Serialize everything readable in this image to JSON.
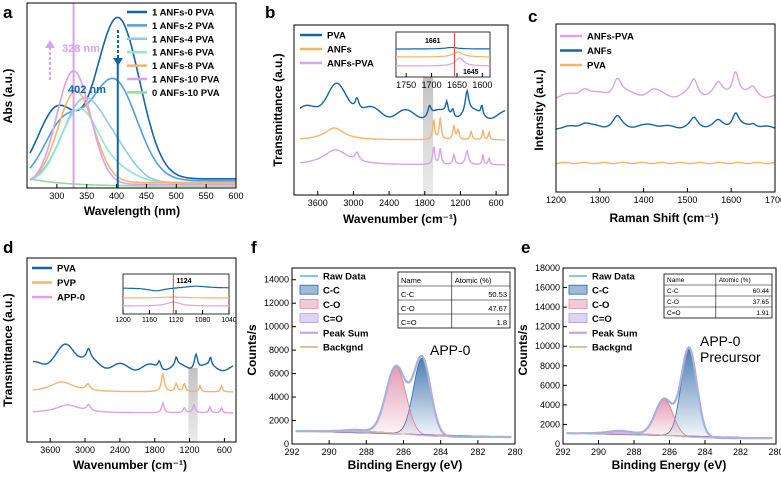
{
  "chart_data": [
    {
      "panel": "a",
      "type": "line",
      "xlabel": "Wavelength (nm)",
      "ylabel": "Abs (a.u.)",
      "xlim": [
        250,
        600
      ],
      "xticks": [
        "300",
        "350",
        "400",
        "450",
        "500",
        "550",
        "600"
      ],
      "annotations": [
        "328 nm",
        "402 nm"
      ],
      "series": [
        {
          "name": "1 ANFs-0 PVA",
          "color": "#1565a6",
          "peak_nm": 402,
          "peak_abs": 0.88
        },
        {
          "name": "1 ANFs-2 PVA",
          "color": "#4f9fe0",
          "peak_nm": 395,
          "peak_abs": 0.55
        },
        {
          "name": "1 ANFs-4 PVA",
          "color": "#8ec8ef",
          "peak_nm": 345,
          "peak_abs": 0.45
        },
        {
          "name": "1 ANFs-6 PVA",
          "color": "#8fe6d2",
          "peak_nm": 338,
          "peak_abs": 0.4
        },
        {
          "name": "1 ANFs-8 PVA",
          "color": "#f6b36c",
          "peak_nm": 332,
          "peak_abs": 0.5
        },
        {
          "name": "1 ANFs-10 PVA",
          "color": "#d9a2ee",
          "peak_nm": 328,
          "peak_abs": 0.62
        },
        {
          "name": "0 ANFs-10 PVA",
          "color": "#9ad89a",
          "peak_nm": 250,
          "peak_abs": 0.04
        }
      ]
    },
    {
      "panel": "b",
      "type": "line",
      "xlabel": "Wavenumber (cm⁻¹)",
      "ylabel": "Transmittance (a.u.)",
      "xlim": [
        4000,
        400
      ],
      "xticks": [
        "3600",
        "3000",
        "2400",
        "1800",
        "1200",
        "600"
      ],
      "series": [
        {
          "name": "PVA",
          "color": "#1565a6"
        },
        {
          "name": "ANFs",
          "color": "#f6b36c"
        },
        {
          "name": "ANFs-PVA",
          "color": "#d9a2ee"
        }
      ],
      "inset": {
        "xticks": [
          "1750",
          "1700",
          "1650",
          "1600"
        ],
        "annotations": [
          "1661",
          "1645"
        ]
      }
    },
    {
      "panel": "c",
      "type": "line",
      "xlabel": "Raman Shift (cm⁻¹)",
      "ylabel": "Intensity (a.u.)",
      "xlim": [
        1200,
        1700
      ],
      "xticks": [
        "1200",
        "1300",
        "1400",
        "1500",
        "1600",
        "1700"
      ],
      "series": [
        {
          "name": "ANFs-PVA",
          "color": "#d9a2ee"
        },
        {
          "name": "ANFs",
          "color": "#1565a6"
        },
        {
          "name": "PVA",
          "color": "#f6b36c"
        }
      ]
    },
    {
      "panel": "d",
      "type": "line",
      "xlabel": "Wavenumber (cm⁻¹)",
      "ylabel": "Transmittance (a.u.)",
      "xlim": [
        4000,
        400
      ],
      "xticks": [
        "3600",
        "3000",
        "2400",
        "1800",
        "1200",
        "600"
      ],
      "series": [
        {
          "name": "PVA",
          "color": "#1565a6"
        },
        {
          "name": "PVP",
          "color": "#f6b36c"
        },
        {
          "name": "APP-0",
          "color": "#d9a2ee"
        }
      ],
      "inset": {
        "xticks": [
          "1200",
          "1160",
          "1120",
          "1080",
          "1040"
        ],
        "annotations": [
          "1124"
        ]
      }
    },
    {
      "panel": "f",
      "type": "line",
      "xlabel": "Binding Energy (eV)",
      "ylabel": "Counts/s",
      "xlim": [
        292,
        280
      ],
      "ylim": [
        0,
        15000
      ],
      "xticks": [
        "292",
        "290",
        "288",
        "286",
        "284",
        "282",
        "280"
      ],
      "yticks": [
        "0",
        "2000",
        "4000",
        "6000",
        "8000",
        "10000",
        "12000",
        "14000"
      ],
      "legend": [
        "Raw Data",
        "C-C",
        "C-O",
        "C=O",
        "Peak Sum",
        "Backgnd"
      ],
      "sample": "APP-0",
      "table": {
        "headers": [
          "Name",
          "Atomic (%)"
        ],
        "rows": [
          [
            "C-C",
            "50.53"
          ],
          [
            "C-O",
            "47.67"
          ],
          [
            "C=O",
            "1.8"
          ]
        ]
      }
    },
    {
      "panel": "e",
      "type": "line",
      "xlabel": "Binding Energy (eV)",
      "ylabel": "Counts/s",
      "xlim": [
        292,
        280
      ],
      "ylim": [
        0,
        18000
      ],
      "xticks": [
        "292",
        "290",
        "288",
        "286",
        "284",
        "282",
        "280"
      ],
      "yticks": [
        "0",
        "2000",
        "4000",
        "6000",
        "8000",
        "10000",
        "12000",
        "14000",
        "16000",
        "18000"
      ],
      "legend": [
        "Raw Data",
        "C-C",
        "C-O",
        "C=O",
        "Peak Sum",
        "Backgnd"
      ],
      "sample_lines": [
        "APP-0",
        "Precursor"
      ],
      "table": {
        "headers": [
          "Name",
          "Atomic (%)"
        ],
        "rows": [
          [
            "C-C",
            "60.44"
          ],
          [
            "C-O",
            "37.65"
          ],
          [
            "C=O",
            "1.91"
          ]
        ]
      }
    }
  ]
}
